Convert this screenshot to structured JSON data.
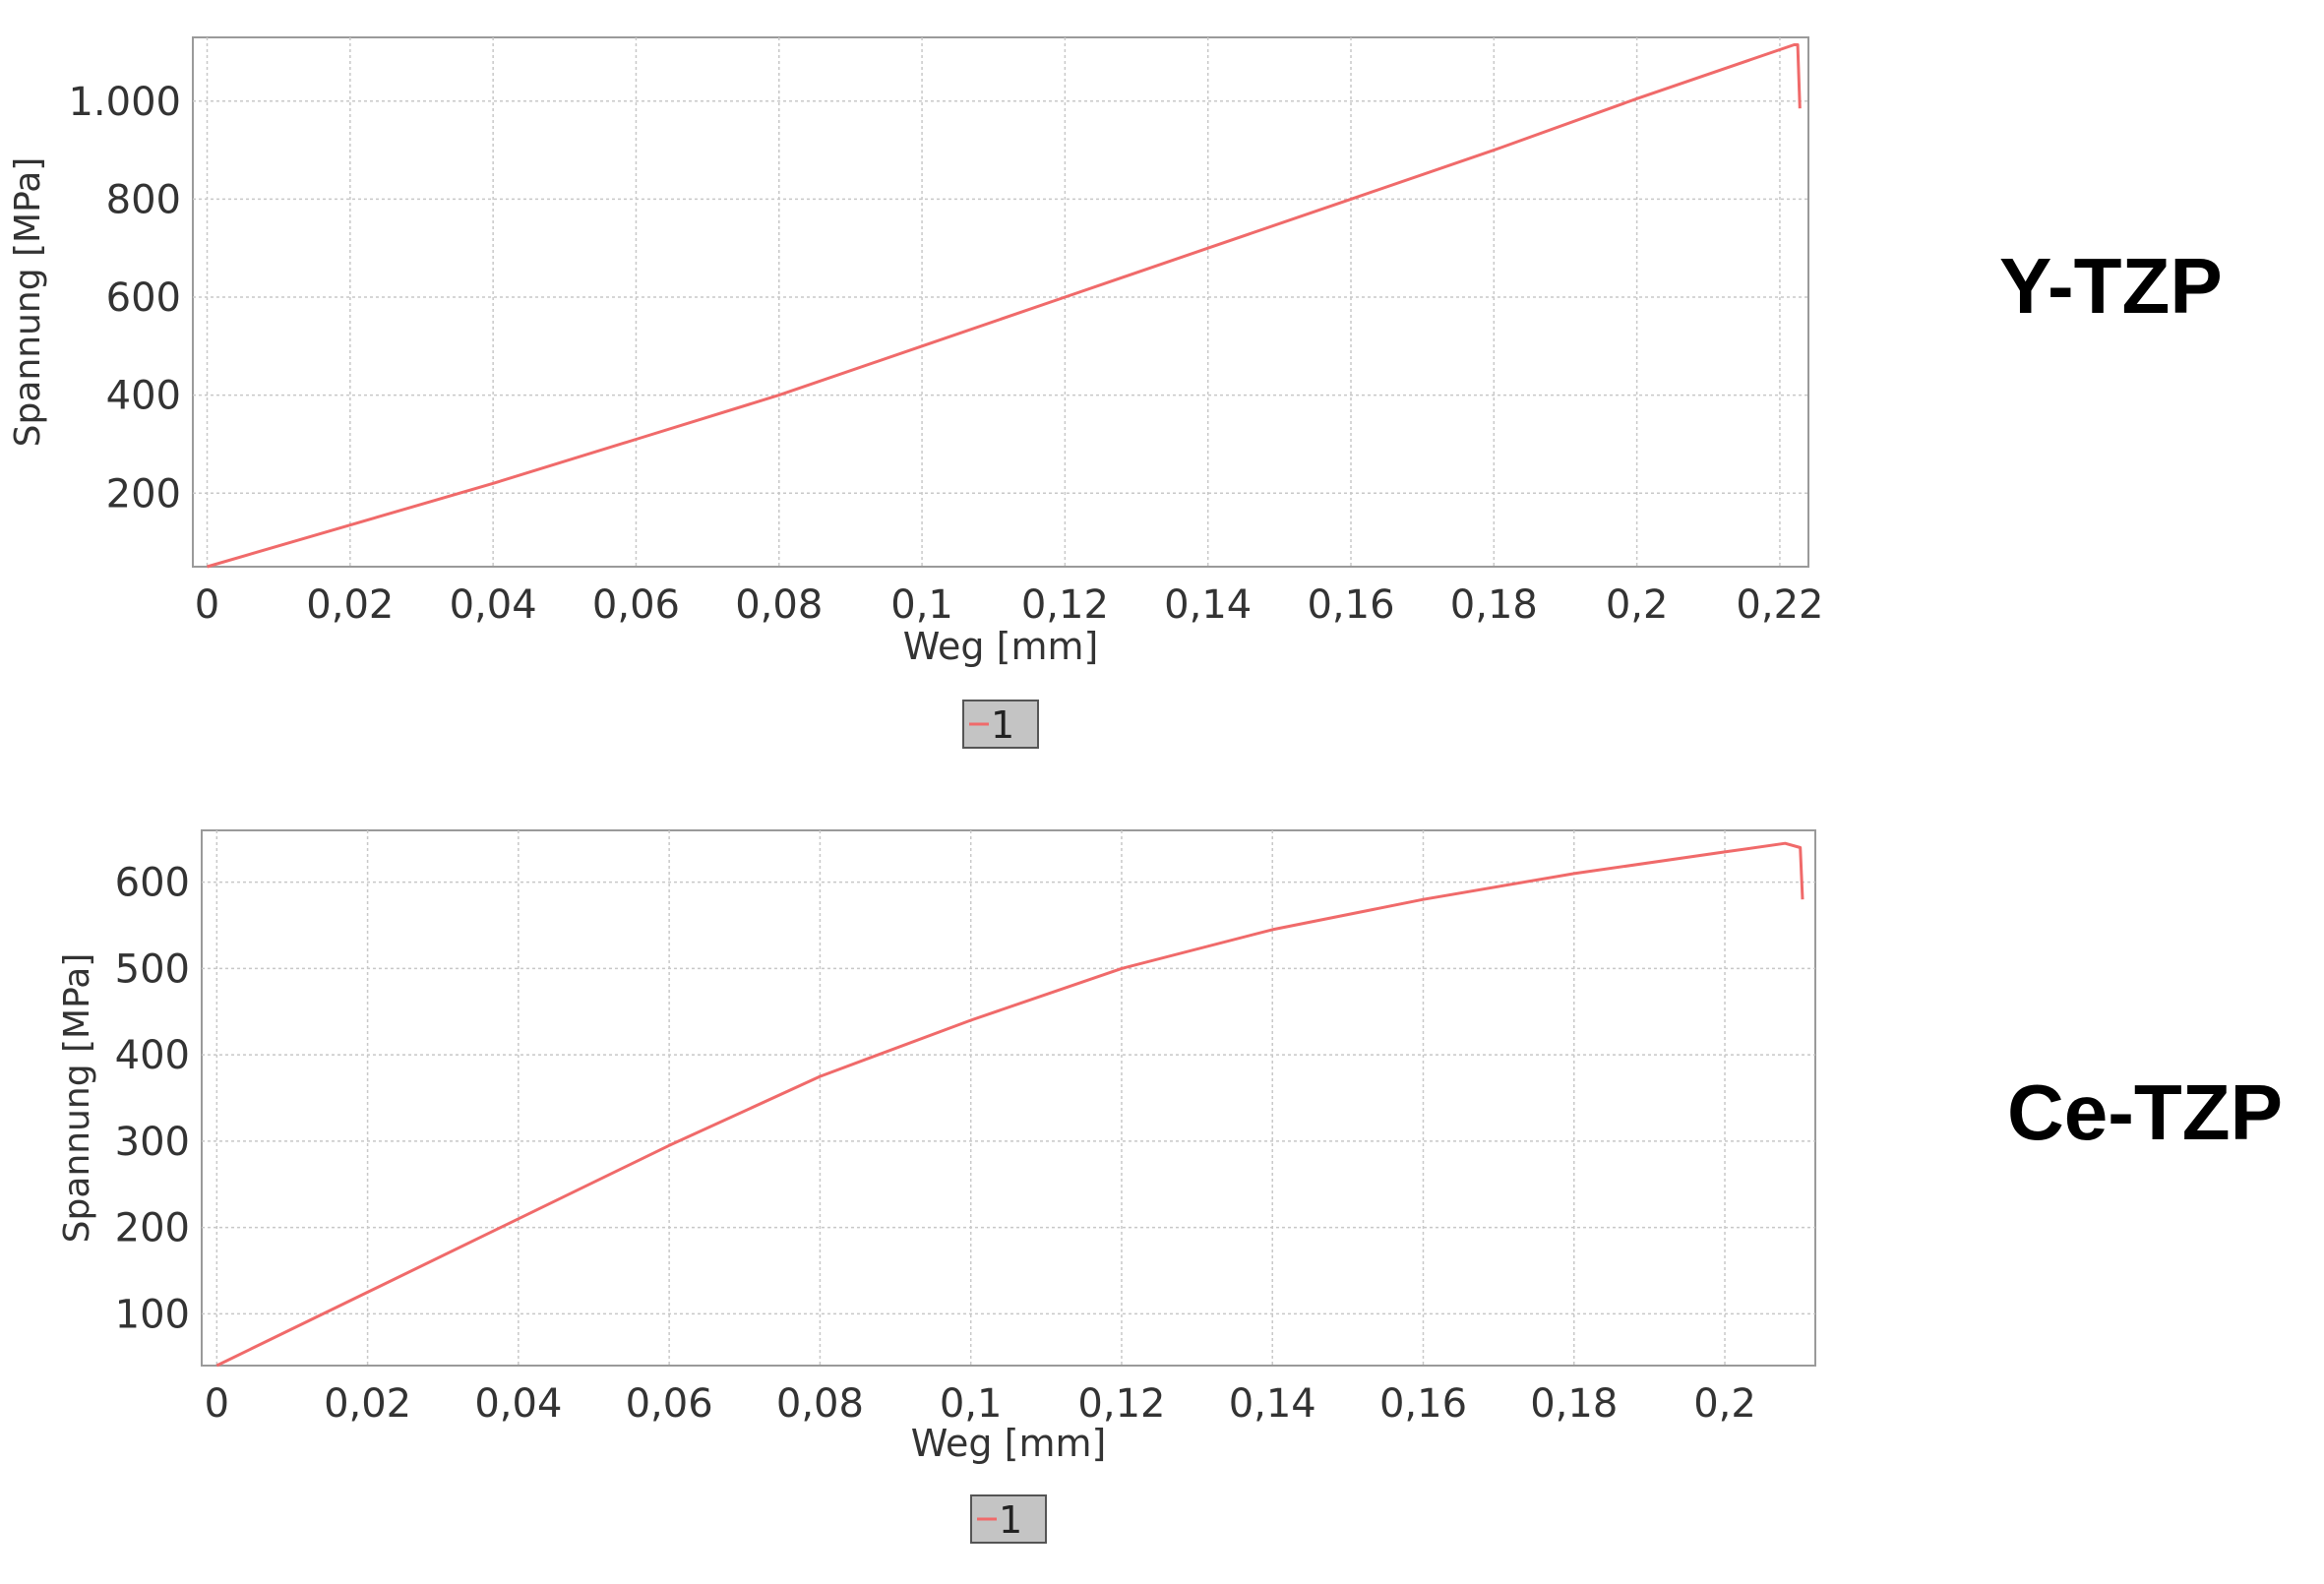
{
  "labels": {
    "top": "Y-TZP",
    "bottom": "Ce-TZP"
  },
  "colors": {
    "series": "#f06a6a",
    "grid": "#c8c8c8",
    "axis": "#9a9a9a",
    "text": "#333333",
    "legend_bg": "#c4c4c4"
  },
  "chart_data": [
    {
      "type": "line",
      "title": "",
      "xlabel": "Weg [mm]",
      "ylabel": "Spannung [MPa]",
      "xlim": [
        -0.002,
        0.224
      ],
      "ylim": [
        50,
        1130
      ],
      "xticks": [
        0,
        0.02,
        0.04,
        0.06,
        0.08,
        0.1,
        0.12,
        0.14,
        0.16,
        0.18,
        0.2,
        0.22
      ],
      "xtick_labels": [
        "0",
        "0,02",
        "0,04",
        "0,06",
        "0,08",
        "0,1",
        "0,12",
        "0,14",
        "0,16",
        "0,18",
        "0,2",
        "0,22"
      ],
      "yticks": [
        200,
        400,
        600,
        800,
        1000
      ],
      "ytick_labels": [
        "200",
        "400",
        "600",
        "800",
        "1.000"
      ],
      "grid": true,
      "legend": [
        "1"
      ],
      "legend_position": "bottom-center",
      "series": [
        {
          "name": "1",
          "x": [
            0,
            0.02,
            0.04,
            0.06,
            0.08,
            0.1,
            0.12,
            0.14,
            0.16,
            0.18,
            0.2,
            0.222,
            0.2225,
            0.2228
          ],
          "y": [
            50,
            135,
            220,
            310,
            400,
            500,
            600,
            700,
            800,
            900,
            1005,
            1115,
            1115,
            985
          ]
        }
      ]
    },
    {
      "type": "line",
      "title": "",
      "xlabel": "Weg [mm]",
      "ylabel": "Spannung [MPa]",
      "xlim": [
        -0.002,
        0.212
      ],
      "ylim": [
        40,
        660
      ],
      "xticks": [
        0,
        0.02,
        0.04,
        0.06,
        0.08,
        0.1,
        0.12,
        0.14,
        0.16,
        0.18,
        0.2
      ],
      "xtick_labels": [
        "0",
        "0,02",
        "0,04",
        "0,06",
        "0,08",
        "0,1",
        "0,12",
        "0,14",
        "0,16",
        "0,18",
        "0,2"
      ],
      "yticks": [
        100,
        200,
        300,
        400,
        500,
        600
      ],
      "ytick_labels": [
        "100",
        "200",
        "300",
        "400",
        "500",
        "600"
      ],
      "grid": true,
      "legend": [
        "1"
      ],
      "legend_position": "bottom-center",
      "series": [
        {
          "name": "1",
          "x": [
            0,
            0.02,
            0.04,
            0.06,
            0.08,
            0.1,
            0.12,
            0.14,
            0.16,
            0.18,
            0.2,
            0.208,
            0.21,
            0.2103
          ],
          "y": [
            40,
            125,
            210,
            295,
            375,
            440,
            500,
            545,
            580,
            610,
            635,
            645,
            640,
            580
          ]
        }
      ]
    }
  ]
}
